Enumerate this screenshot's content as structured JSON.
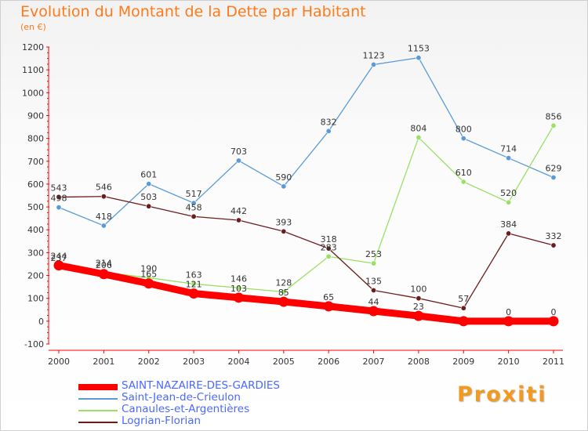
{
  "chart_data": {
    "type": "line",
    "title": "Evolution du Montant de la Dette par Habitant",
    "subtitle": "(en €)",
    "x": [
      "2000",
      "2001",
      "2002",
      "2003",
      "2004",
      "2005",
      "2006",
      "2007",
      "2008",
      "2009",
      "2010",
      "2011"
    ],
    "ylim": [
      -100,
      1200
    ],
    "yticks": [
      -100,
      0,
      100,
      200,
      300,
      400,
      500,
      600,
      700,
      800,
      900,
      1000,
      1100,
      1200
    ],
    "grid": false,
    "legend_position": "bottom-left",
    "series": [
      {
        "name": "SAINT-NAZAIRE-DES-GARDIES",
        "color": "#ff0000",
        "values": [
          244,
          206,
          165,
          121,
          103,
          85,
          65,
          44,
          23,
          0,
          0,
          0
        ],
        "labels": [
          "244",
          "206",
          "165",
          "121",
          "103",
          "85",
          "65",
          "44",
          "23",
          "",
          "0",
          "0"
        ]
      },
      {
        "name": "Saint-Jean-de-Crieulon",
        "color": "#5b9bd5",
        "values": [
          498,
          418,
          601,
          517,
          703,
          590,
          832,
          1123,
          1153,
          800,
          714,
          629
        ],
        "labels": [
          "498",
          "418",
          "601",
          "517",
          "703",
          "590",
          "832",
          "1123",
          "1153",
          "800",
          "714",
          "629"
        ]
      },
      {
        "name": "Canaules-et-Argentières",
        "color": "#99e065",
        "values": [
          237,
          214,
          190,
          163,
          146,
          128,
          283,
          253,
          804,
          610,
          520,
          856
        ],
        "labels": [
          "237",
          "214",
          "190",
          "163",
          "146",
          "128",
          "283",
          "253",
          "804",
          "610",
          "520",
          "856"
        ]
      },
      {
        "name": "Logrian-Florian",
        "color": "#6b1c1c",
        "values": [
          543,
          546,
          503,
          458,
          442,
          393,
          318,
          135,
          100,
          57,
          384,
          332
        ],
        "labels": [
          "543",
          "546",
          "503",
          "458",
          "442",
          "393",
          "318",
          "135",
          "100",
          "57",
          "384",
          "332"
        ]
      }
    ]
  },
  "logo": {
    "text": "Proxiti"
  }
}
